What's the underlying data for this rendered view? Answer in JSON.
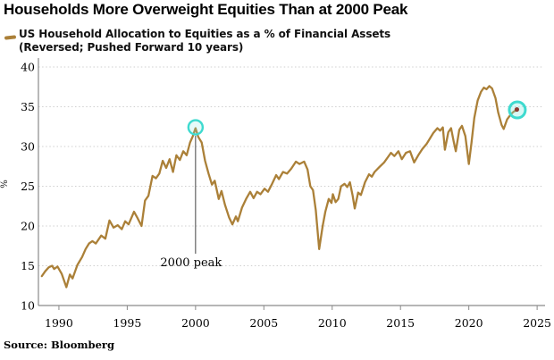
{
  "title": "Households More Overweight Equities Than at 2000 Peak",
  "legend": {
    "line1": "US Household Allocation to Equities as a % of Financial Assets",
    "line2": "(Reversed; Pushed Forward 10 years)"
  },
  "source": "Source: Bloomberg",
  "colors": {
    "line": "#ab8038",
    "grid": "#cfcfcf",
    "axis": "#8a8a8a",
    "annotation_line": "#444444",
    "highlight_circle": "#3edacf",
    "end_dot": "#8e3a31",
    "text": "#000000"
  },
  "chart_data": {
    "type": "line",
    "title": "Households More Overweight Equities Than at 2000 Peak",
    "series_name": "US Household Allocation to Equities as a % of Financial Assets (Reversed; Pushed Forward 10 years)",
    "xlabel": "",
    "ylabel": "%",
    "xlim": [
      1988.5,
      2025.45
    ],
    "ylim": [
      10,
      40
    ],
    "xticks": [
      1990,
      1995,
      2000,
      2005,
      2010,
      2015,
      2020,
      2025
    ],
    "yticks": [
      40,
      35,
      30,
      25,
      20,
      15,
      10
    ],
    "grid": "horizontal-dotted",
    "legend_position": "top-left",
    "points": [
      [
        1988.75,
        13.7
      ],
      [
        1989.0,
        14.3
      ],
      [
        1989.25,
        14.8
      ],
      [
        1989.5,
        15.0
      ],
      [
        1989.65,
        14.6
      ],
      [
        1989.9,
        14.9
      ],
      [
        1990.2,
        14.0
      ],
      [
        1990.55,
        12.3
      ],
      [
        1990.8,
        13.9
      ],
      [
        1991.0,
        13.4
      ],
      [
        1991.35,
        15.1
      ],
      [
        1991.7,
        16.1
      ],
      [
        1991.95,
        17.1
      ],
      [
        1992.2,
        17.8
      ],
      [
        1992.45,
        18.1
      ],
      [
        1992.7,
        17.8
      ],
      [
        1993.1,
        18.8
      ],
      [
        1993.4,
        18.4
      ],
      [
        1993.7,
        20.7
      ],
      [
        1994.0,
        19.8
      ],
      [
        1994.3,
        20.1
      ],
      [
        1994.6,
        19.6
      ],
      [
        1994.85,
        20.6
      ],
      [
        1995.1,
        20.2
      ],
      [
        1995.5,
        21.8
      ],
      [
        1995.75,
        21.0
      ],
      [
        1996.05,
        20.0
      ],
      [
        1996.3,
        23.2
      ],
      [
        1996.55,
        23.8
      ],
      [
        1996.85,
        26.3
      ],
      [
        1997.1,
        26.0
      ],
      [
        1997.35,
        26.6
      ],
      [
        1997.6,
        28.2
      ],
      [
        1997.85,
        27.3
      ],
      [
        1998.1,
        28.4
      ],
      [
        1998.35,
        26.8
      ],
      [
        1998.6,
        28.9
      ],
      [
        1998.85,
        28.3
      ],
      [
        1999.1,
        29.4
      ],
      [
        1999.35,
        28.9
      ],
      [
        1999.6,
        30.5
      ],
      [
        1999.8,
        31.3
      ],
      [
        2000.0,
        32.3
      ],
      [
        2000.2,
        31.2
      ],
      [
        2000.45,
        30.5
      ],
      [
        2000.7,
        28.2
      ],
      [
        2000.95,
        26.6
      ],
      [
        2001.2,
        25.2
      ],
      [
        2001.4,
        25.7
      ],
      [
        2001.7,
        23.4
      ],
      [
        2001.9,
        24.4
      ],
      [
        2002.15,
        22.7
      ],
      [
        2002.45,
        21.1
      ],
      [
        2002.7,
        20.2
      ],
      [
        2002.95,
        21.2
      ],
      [
        2003.1,
        20.6
      ],
      [
        2003.4,
        22.3
      ],
      [
        2003.7,
        23.4
      ],
      [
        2004.0,
        24.3
      ],
      [
        2004.25,
        23.5
      ],
      [
        2004.5,
        24.3
      ],
      [
        2004.75,
        24.0
      ],
      [
        2005.05,
        24.7
      ],
      [
        2005.3,
        24.3
      ],
      [
        2005.6,
        25.3
      ],
      [
        2005.9,
        26.4
      ],
      [
        2006.1,
        25.9
      ],
      [
        2006.4,
        26.8
      ],
      [
        2006.7,
        26.6
      ],
      [
        2007.0,
        27.2
      ],
      [
        2007.35,
        28.1
      ],
      [
        2007.6,
        27.8
      ],
      [
        2007.95,
        28.1
      ],
      [
        2008.2,
        27.1
      ],
      [
        2008.4,
        25.0
      ],
      [
        2008.6,
        24.5
      ],
      [
        2008.8,
        22.0
      ],
      [
        2009.05,
        17.1
      ],
      [
        2009.3,
        20.0
      ],
      [
        2009.5,
        21.8
      ],
      [
        2009.75,
        23.4
      ],
      [
        2009.95,
        22.9
      ],
      [
        2010.05,
        24.0
      ],
      [
        2010.25,
        23.0
      ],
      [
        2010.45,
        23.4
      ],
      [
        2010.65,
        25.0
      ],
      [
        2010.9,
        25.3
      ],
      [
        2011.1,
        24.9
      ],
      [
        2011.3,
        25.5
      ],
      [
        2011.5,
        23.8
      ],
      [
        2011.65,
        22.2
      ],
      [
        2011.9,
        24.2
      ],
      [
        2012.1,
        23.9
      ],
      [
        2012.4,
        25.5
      ],
      [
        2012.7,
        26.5
      ],
      [
        2012.9,
        26.2
      ],
      [
        2013.1,
        26.8
      ],
      [
        2013.45,
        27.4
      ],
      [
        2013.8,
        28.0
      ],
      [
        2014.05,
        28.6
      ],
      [
        2014.3,
        29.2
      ],
      [
        2014.55,
        28.8
      ],
      [
        2014.85,
        29.4
      ],
      [
        2015.1,
        28.4
      ],
      [
        2015.4,
        29.2
      ],
      [
        2015.7,
        29.4
      ],
      [
        2016.0,
        28.0
      ],
      [
        2016.3,
        28.9
      ],
      [
        2016.6,
        29.7
      ],
      [
        2016.9,
        30.3
      ],
      [
        2017.15,
        31.0
      ],
      [
        2017.4,
        31.7
      ],
      [
        2017.7,
        32.3
      ],
      [
        2017.9,
        32.0
      ],
      [
        2018.1,
        32.4
      ],
      [
        2018.25,
        29.6
      ],
      [
        2018.5,
        31.8
      ],
      [
        2018.7,
        32.3
      ],
      [
        2018.9,
        30.6
      ],
      [
        2019.05,
        29.4
      ],
      [
        2019.3,
        32.1
      ],
      [
        2019.5,
        32.6
      ],
      [
        2019.75,
        31.3
      ],
      [
        2020.0,
        27.8
      ],
      [
        2020.2,
        30.5
      ],
      [
        2020.4,
        33.6
      ],
      [
        2020.65,
        35.8
      ],
      [
        2020.9,
        36.9
      ],
      [
        2021.1,
        37.4
      ],
      [
        2021.3,
        37.2
      ],
      [
        2021.5,
        37.6
      ],
      [
        2021.7,
        37.3
      ],
      [
        2021.95,
        36.1
      ],
      [
        2022.15,
        34.3
      ],
      [
        2022.4,
        32.7
      ],
      [
        2022.55,
        32.2
      ],
      [
        2022.8,
        33.4
      ],
      [
        2023.1,
        34.1
      ],
      [
        2023.3,
        34.4
      ],
      [
        2023.55,
        34.6
      ]
    ],
    "annotations": {
      "peak_label": "2000 peak",
      "peak_point": [
        2000.0,
        32.3
      ],
      "end_point": [
        2023.55,
        34.6
      ]
    }
  }
}
